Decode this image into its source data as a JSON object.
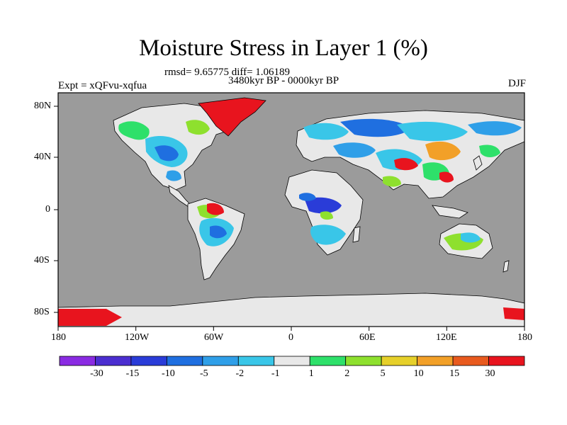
{
  "header": {
    "title": "Moisture Stress in Layer 1 (%)",
    "stats": "rmsd= 9.65775 diff= 1.06189",
    "period": "3480kyr BP - 0000kyr BP",
    "experiment": "Expt = xQFvu-xqfua",
    "season": "DJF"
  },
  "axes": {
    "lon_ticks": [
      "180",
      "120W",
      "60W",
      "0",
      "60E",
      "120E",
      "180"
    ],
    "lat_ticks": [
      "80N",
      "40N",
      "0",
      "40S",
      "80S"
    ]
  },
  "colorbar": {
    "labels": [
      "-30",
      "-15",
      "-10",
      "-5",
      "-2",
      "-1",
      "1",
      "2",
      "5",
      "10",
      "15",
      "30"
    ],
    "colors": [
      "#8a2be2",
      "#4b2ed0",
      "#2a3cd8",
      "#1f6fe0",
      "#2f9fe8",
      "#39c6e8",
      "#e8e8e8",
      "#2ee06a",
      "#8ee02e",
      "#e6d02a",
      "#f2a028",
      "#e85a1e",
      "#e8141e"
    ]
  },
  "colors": {
    "ocean": "#9b9b9b",
    "land_neutral": "#e8e8e8",
    "coast": "#000000"
  }
}
